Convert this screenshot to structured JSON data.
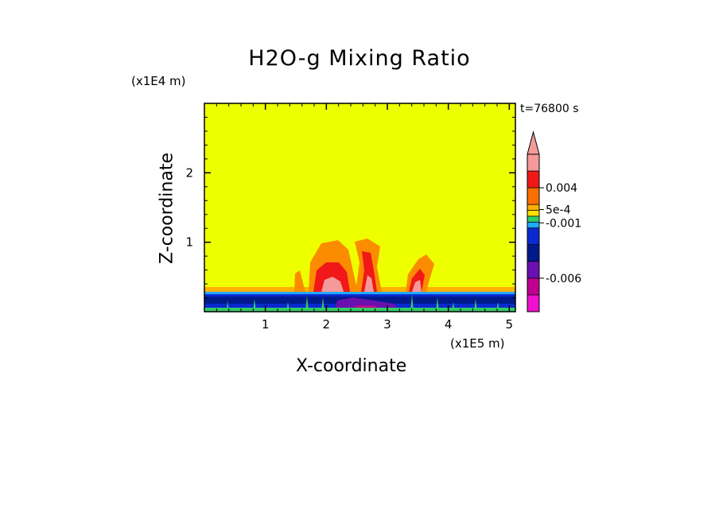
{
  "chart_data": {
    "type": "heatmap",
    "title": "H2O-g Mixing Ratio",
    "xlabel": "X-coordinate",
    "ylabel": "Z-coordinate",
    "x_scale_label": "(x1E5 m)",
    "z_scale_label": "(x1E4 m)",
    "time_label": "t=76800 s",
    "xlim": [
      0,
      5.1
    ],
    "zlim": [
      0,
      3
    ],
    "x_ticks": [
      "1",
      "2",
      "3",
      "4",
      "5"
    ],
    "z_ticks": [
      "1",
      "2"
    ],
    "background_color": "#eeff00",
    "colorbar": {
      "tick_labels": [
        "0.004",
        "5e-4",
        "-0.001",
        "-0.006"
      ],
      "colors_top_to_bottom": [
        "#f59a9a",
        "#f01818",
        "#fb6e00",
        "#ffb000",
        "#ffe000",
        "#33cc66",
        "#22aaff",
        "#0a2ad0",
        "#001a8c",
        "#6a10b0",
        "#c00090",
        "#f010d0"
      ]
    }
  }
}
